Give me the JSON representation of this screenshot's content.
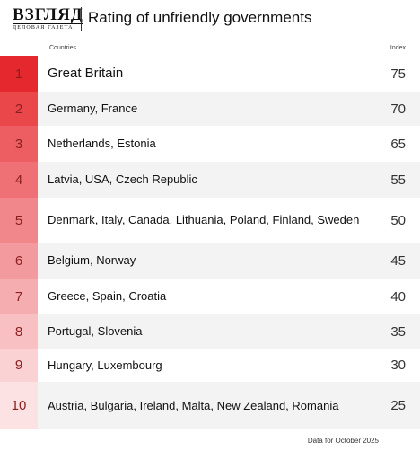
{
  "header": {
    "logo": "ВЗГЛЯД",
    "logo_sub": "ДЕЛОВАЯ ГАЗЕТА",
    "title": "Rating of unfriendly governments"
  },
  "table": {
    "columns": [
      "Countries",
      "Index"
    ],
    "rows": [
      [
        1,
        "Great Britain",
        75
      ],
      [
        2,
        "Germany, France",
        70
      ],
      [
        3,
        "Netherlands, Estonia",
        65
      ],
      [
        4,
        "Latvia, USA, Czech Republic",
        55
      ],
      [
        5,
        "Denmark, Italy, Canada, Lithuania, Poland, Finland, Sweden",
        50
      ],
      [
        6,
        "Belgium, Norway",
        45
      ],
      [
        7,
        "Greece, Spain, Croatia",
        40
      ],
      [
        8,
        "Portugal, Slovenia",
        35
      ],
      [
        9,
        "Hungary, Luxembourg",
        30
      ],
      [
        10,
        "Austria, Bulgaria, Ireland, Malta, New Zealand, Romania",
        25
      ]
    ]
  },
  "footer": "Data for October 2025"
}
